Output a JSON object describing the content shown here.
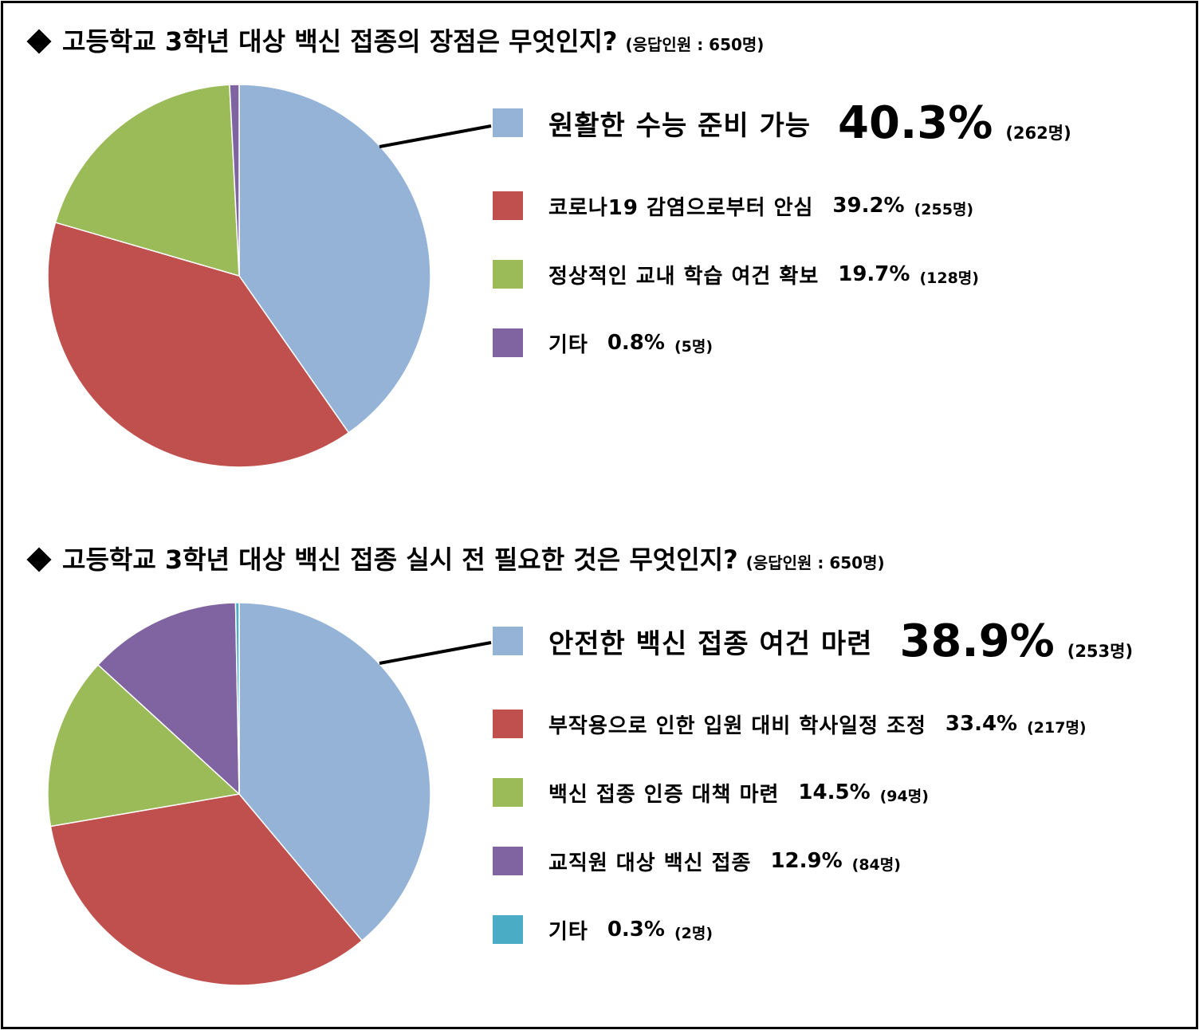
{
  "chart_data": [
    {
      "type": "pie",
      "title": "고등학교 3학년 대상 백신 접종의 장점은 무엇인지?",
      "note": "(응답인원 : 650명)",
      "slices": [
        {
          "label": "원활한 수능 준비 가능",
          "value": 40.3,
          "percent_label": "40.3%",
          "count_label": "(262명)",
          "color": "#95b3d7"
        },
        {
          "label": "코로나19 감염으로부터 안심",
          "value": 39.2,
          "percent_label": "39.2%",
          "count_label": "(255명)",
          "color": "#c0504d"
        },
        {
          "label": "정상적인 교내 학습 여건 확보",
          "value": 19.7,
          "percent_label": "19.7%",
          "count_label": "(128명)",
          "color": "#9bbb59"
        },
        {
          "label": "기타",
          "value": 0.8,
          "percent_label": "0.8%",
          "count_label": "(5명)",
          "color": "#8064a2"
        }
      ]
    },
    {
      "type": "pie",
      "title": "고등학교 3학년 대상 백신 접종 실시 전 필요한 것은 무엇인지?",
      "note": "(응답인원 : 650명)",
      "slices": [
        {
          "label": "안전한 백신 접종 여건 마련",
          "value": 38.9,
          "percent_label": "38.9%",
          "count_label": "(253명)",
          "color": "#95b3d7"
        },
        {
          "label": "부작용으로 인한 입원 대비 학사일정 조정",
          "value": 33.4,
          "percent_label": "33.4%",
          "count_label": "(217명)",
          "color": "#c0504d"
        },
        {
          "label": "백신 접종 인증 대책 마련",
          "value": 14.5,
          "percent_label": "14.5%",
          "count_label": "(94명)",
          "color": "#9bbb59"
        },
        {
          "label": "교직원 대상 백신 접종",
          "value": 12.9,
          "percent_label": "12.9%",
          "count_label": "(84명)",
          "color": "#8064a2"
        },
        {
          "label": "기타",
          "value": 0.3,
          "percent_label": "0.3%",
          "count_label": "(2명)",
          "color": "#4bacc6"
        }
      ]
    }
  ]
}
